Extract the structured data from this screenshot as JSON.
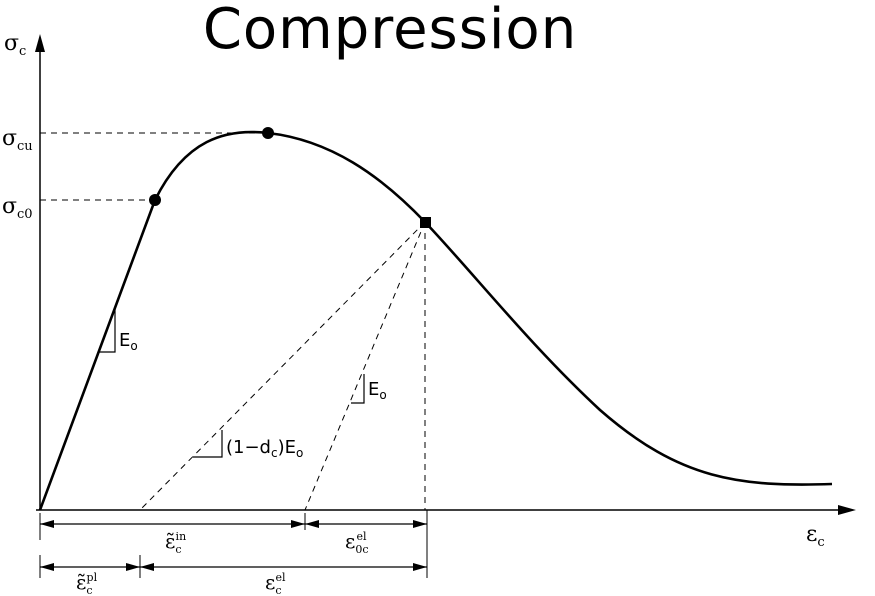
{
  "title": "Compression",
  "axes": {
    "y_symbol": "σ",
    "y_sub": "c",
    "x_symbol": "ε",
    "x_sub": "c"
  },
  "y_levels": [
    {
      "symbol": "σ",
      "sub": "cu"
    },
    {
      "symbol": "σ",
      "sub": "c0"
    }
  ],
  "slopes": [
    {
      "text": "E",
      "sub": "o"
    },
    {
      "text": "E",
      "sub": "o"
    },
    {
      "text": "(1−d",
      "sub": "c",
      "tail": ")E",
      "sub2": "o"
    }
  ],
  "strain_labels": {
    "inelastic": {
      "symbol": "ε̃",
      "sub": "c",
      "sup": "in"
    },
    "elastic_0": {
      "symbol": "ε",
      "sub": "0c",
      "sup": "el"
    },
    "plastic": {
      "symbol": "ε̃",
      "sub": "c",
      "sup": "pl"
    },
    "elastic": {
      "symbol": "ε",
      "sub": "c",
      "sup": "el"
    }
  }
}
